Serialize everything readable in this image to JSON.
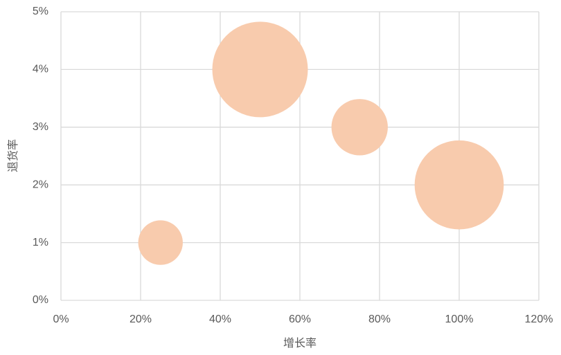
{
  "chart_data": {
    "type": "bubble",
    "x_label": "增长率",
    "y_label": "退货率",
    "x": [
      25,
      50,
      75,
      100
    ],
    "values": [
      1,
      4,
      3,
      2
    ],
    "sizes": [
      10,
      46,
      16,
      40
    ],
    "color": "#f8cbad",
    "xlim": [
      0,
      120
    ],
    "xticks": [
      {
        "value": 0,
        "label": "0%"
      },
      {
        "value": 20,
        "label": "20%"
      },
      {
        "value": 40,
        "label": "40%"
      },
      {
        "value": 60,
        "label": "60%"
      },
      {
        "value": 80,
        "label": "80%"
      },
      {
        "value": 100,
        "label": "100%"
      },
      {
        "value": 120,
        "label": "120%"
      }
    ],
    "ylim": [
      0,
      5
    ],
    "yticks": [
      {
        "value": 0,
        "label": "0%"
      },
      {
        "value": 1,
        "label": "1%"
      },
      {
        "value": 2,
        "label": "2%"
      },
      {
        "value": 3,
        "label": "3%"
      },
      {
        "value": 4,
        "label": "4%"
      },
      {
        "value": 5,
        "label": "5%"
      }
    ],
    "grid": true
  }
}
